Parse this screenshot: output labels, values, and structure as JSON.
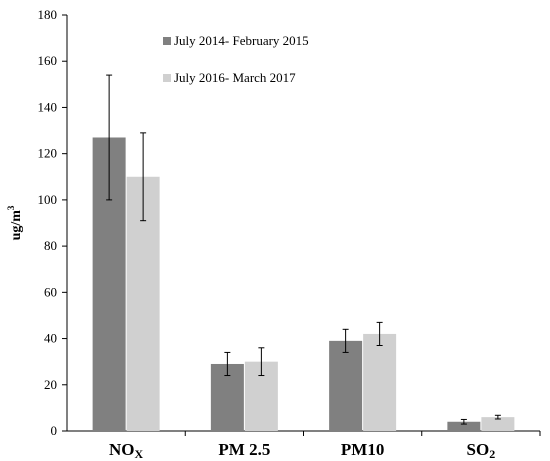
{
  "chart_data": {
    "type": "bar",
    "categories": [
      "NOX",
      "PM 2.5",
      "PM10",
      "SO2"
    ],
    "category_labels": [
      {
        "main": "NO",
        "sub": "X"
      },
      {
        "main": "PM 2.5",
        "sub": ""
      },
      {
        "main": "PM10",
        "sub": ""
      },
      {
        "main": "SO",
        "sub": "2"
      }
    ],
    "series": [
      {
        "name": "July 2014- February 2015",
        "color": "#808080",
        "values": [
          127,
          29,
          39,
          4
        ],
        "errors": [
          27,
          5,
          5,
          1
        ]
      },
      {
        "name": "July 2016- March 2017",
        "color": "#d0d0d0",
        "values": [
          110,
          30,
          42,
          6
        ],
        "errors": [
          19,
          6,
          5,
          0.8
        ]
      }
    ],
    "ylabel": {
      "main": "ug/m",
      "sup": "3"
    },
    "ylim": [
      0,
      180
    ],
    "yticks": [
      0,
      20,
      40,
      60,
      80,
      100,
      120,
      140,
      160,
      180
    ],
    "grid": false,
    "legend_position": "top-center"
  }
}
